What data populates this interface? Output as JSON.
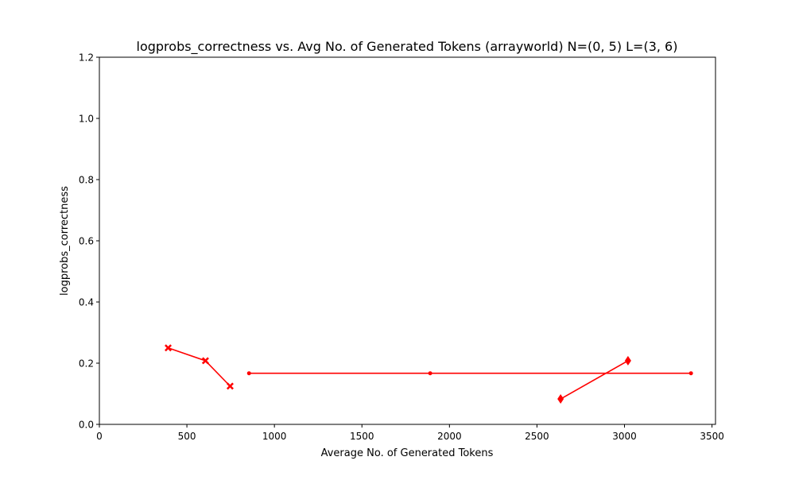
{
  "chart_data": {
    "type": "line",
    "title": "logprobs_correctness vs. Avg No. of Generated Tokens (arrayworld) N=(0, 5) L=(3, 6)",
    "xlabel": "Average No. of Generated Tokens",
    "ylabel": "logprobs_correctness",
    "xlim": [
      0,
      3520
    ],
    "ylim": [
      0,
      1.2
    ],
    "xticks": [
      0,
      500,
      1000,
      1500,
      2000,
      2500,
      3000,
      3500
    ],
    "xtick_labels": [
      "0",
      "500",
      "1000",
      "1500",
      "2000",
      "2500",
      "3000",
      "3500"
    ],
    "yticks": [
      0.0,
      0.2,
      0.4,
      0.6,
      0.8,
      1.0,
      1.2
    ],
    "ytick_labels": [
      "0.0",
      "0.2",
      "0.4",
      "0.6",
      "0.8",
      "1.0",
      "1.2"
    ],
    "grid": false,
    "legend": "none",
    "color": "#ff0000",
    "series": [
      {
        "marker": "x-filled",
        "x": [
          393,
          606,
          747
        ],
        "y": [
          0.25,
          0.208,
          0.125
        ]
      },
      {
        "marker": "dot",
        "x": [
          855,
          1890,
          3380
        ],
        "y": [
          0.167,
          0.167,
          0.167
        ]
      },
      {
        "marker": "diamond",
        "x": [
          2635,
          3020
        ],
        "y": [
          0.083,
          0.208
        ]
      }
    ]
  }
}
